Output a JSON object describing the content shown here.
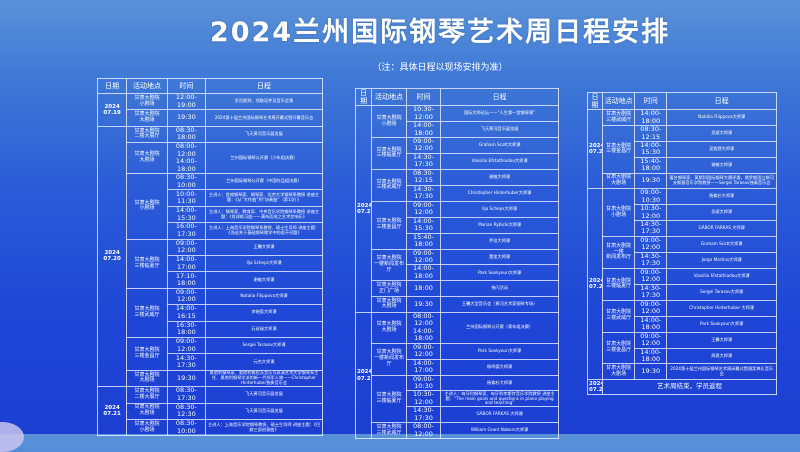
{
  "title": "2024兰州国际钢琴艺术周日程安排",
  "subtitle": "（注：具体日程以现场安排为准）",
  "headers": {
    "date": "日期",
    "venue": "活动地点",
    "time": "时间",
    "event": "日程"
  },
  "colors": {
    "background": "#2a5ad8",
    "text": "#ffffff",
    "grid": "#ebf0ff"
  },
  "tables": [
    {
      "groups": [
        {
          "date": "2024\n07.19",
          "venues": [
            {
              "name": "甘肃大剧院\n小剧场",
              "sessions": [
                {
                  "time": "12:00-19:00",
                  "event": "学员报到、领取证件及音乐会票"
                }
              ]
            },
            {
              "name": "甘肃大剧院\n大剧场",
              "sessions": [
                {
                  "time": "19:30",
                  "event": "2024第十届兰州国际钢琴艺术周开幕式暨开幕音乐会"
                }
              ]
            }
          ]
        },
        {
          "date": "2024\n07.20",
          "venues": [
            {
              "name": "甘肃大剧院\n二楼大展厅",
              "sessions": [
                {
                  "time": "08:30-18:00",
                  "event": "飞天黄河音乐展览展"
                }
              ]
            },
            {
              "name": "甘肃大剧院\n大剧场",
              "sessions": [
                {
                  "time": "08:00-12:00\n14:00-18:00",
                  "event": "兰州国际钢琴公开赛（少年组决赛）"
                }
              ]
            },
            {
              "name": "甘肃大剧院\n小剧场",
              "sessions": [
                {
                  "time": "08:30-10:00",
                  "event": "兰州国际钢琴公开赛（中国作品组决赛）"
                },
                {
                  "time": "10:00-11:30",
                  "event": "主讲人：首席钢琴家、钢琴家、北京大学钢琴系教授 讲座主题：《从“大作曲”到“协奏曲”（第1次）》"
                },
                {
                  "time": "14:00-15:30",
                  "event": "主讲人：钢琴家、教育家、中央音乐学院钢琴系教授 讲座主题：《肖邦练习曲——满布而成之艺术交响乐》"
                },
                {
                  "time": "16:00-17:30",
                  "event": "主讲人：上海音乐学院钢琴系教授、硕士生导师 讲座主题：《浅谈关于基础钢琴教学中的若干问题》"
                }
              ]
            },
            {
              "name": "甘肃大剧院\n三楼临夏厅",
              "sessions": [
                {
                  "time": "09:00-12:00",
                  "event": "王馨大师课"
                },
                {
                  "time": "14:00-17:00",
                  "event": "Ilja Scheps大师课"
                },
                {
                  "time": "17:10-18:00",
                  "event": "谢敏大师课"
                }
              ]
            },
            {
              "name": "甘肃大剧院\n三楼武威厅",
              "sessions": [
                {
                  "time": "09:00-12:00",
                  "event": "Natalia Filippova大师课"
                },
                {
                  "time": "14:00-16:15",
                  "event": "李晓笛大师课"
                },
                {
                  "time": "16:30-18:00",
                  "event": "石叔诚大师课"
                }
              ]
            },
            {
              "name": "甘肃大剧院\n三楼金昌厅",
              "sessions": [
                {
                  "time": "09:00-12:00",
                  "event": "Sergei Tarasov大师课"
                },
                {
                  "time": "14:30-17:30",
                  "event": "元杰大师课"
                }
              ]
            },
            {
              "name": "甘肃大剧院\n大剧场",
              "sessions": [
                {
                  "time": "19:30",
                  "event": "奥地利钢琴家、奥地利格拉茨音乐与表演艺术大学钢琴系主任、奥地利钢琴学派的新一代领军人物——Christopher Hinterhuber独奏音乐会"
                }
              ]
            }
          ]
        },
        {
          "date": "2024\n07.21",
          "venues": [
            {
              "name": "甘肃大剧院\n二楼大展厅",
              "sessions": [
                {
                  "time": "08:30-17:30",
                  "event": "飞天黄河音乐展览展"
                }
              ]
            },
            {
              "name": "甘肃大剧院\n大剧场",
              "sessions": [
                {
                  "time": "08:30-12:30",
                  "event": "飞天黄河音乐展览展"
                }
              ]
            },
            {
              "name": "甘肃大剧院\n小剧场",
              "sessions": [
                {
                  "time": "08:30-10:00",
                  "event": "主讲人：上海音乐学院钢琴教授、硕士生导师 讲座主题：《巴赫三部创意曲》"
                }
              ]
            }
          ]
        }
      ]
    },
    {
      "groups": [
        {
          "date": "2024\n07.21",
          "venues": [
            {
              "name": "甘肃大剧院\n小剧场",
              "sessions": [
                {
                  "time": "10:30-12:00",
                  "event": "国际大师论坛——“人生第一堂钢琴课”"
                },
                {
                  "time": "14:00-18:00",
                  "event": "飞天黄河音乐展览展"
                }
              ]
            },
            {
              "name": "甘肃大剧院\n三楼临夏厅",
              "sessions": [
                {
                  "time": "09:00-12:00",
                  "event": "Graham Scott大师课"
                },
                {
                  "time": "14:30-17:30",
                  "event": "Vassilia Efstathiadou大师课"
                }
              ]
            },
            {
              "name": "甘肃大剧院\n三楼武威厅",
              "sessions": [
                {
                  "time": "08:30-12:15",
                  "event": "谢敏大师课"
                },
                {
                  "time": "14:30-17:30",
                  "event": "Christopher Hinterhuber大师课"
                }
              ]
            },
            {
              "name": "甘肃大剧院\n三楼金昌厅",
              "sessions": [
                {
                  "time": "09:00-12:00",
                  "event": "Ilja Scheps大师课"
                },
                {
                  "time": "14:00-15:30",
                  "event": "Marian Rybicki大师课"
                },
                {
                  "time": "15:40-18:00",
                  "event": "乔佳大师课"
                }
              ]
            },
            {
              "name": "甘肃大剧院\n一楼新闻发布厅",
              "sessions": [
                {
                  "time": "09:00-12:00",
                  "event": "董笙大师课"
                },
                {
                  "time": "14:00-18:00",
                  "event": "Park Sookyoun大师课"
                }
              ]
            },
            {
              "name": "甘肃大剧院\n正门广场",
              "sessions": [
                {
                  "time": "18:00",
                  "event": "快闪活动"
                }
              ]
            },
            {
              "name": "甘肃大剧院\n大剧场",
              "sessions": [
                {
                  "time": "19:30",
                  "event": "王馨大型音乐会（黄河艺术家钢琴专场）"
                }
              ]
            }
          ]
        },
        {
          "date": "2024\n07.22",
          "venues": [
            {
              "name": "甘肃大剧院\n大剧场",
              "sessions": [
                {
                  "time": "08:00-12:00\n14:00-18:00",
                  "event": "兰州国际钢琴公开赛（青年组决赛）"
                }
              ]
            },
            {
              "name": "甘肃大剧院\n一楼新闻发布厅",
              "sessions": [
                {
                  "time": "09:00-12:00",
                  "event": "Park Sookyoun大师课"
                },
                {
                  "time": "14:00-17:00",
                  "event": "杨鸣德大师课"
                }
              ]
            },
            {
              "name": "甘肃大剧院\n三楼临夏厅",
              "sessions": [
                {
                  "time": "09:00-10:30",
                  "event": "杨紫杉大师课"
                },
                {
                  "time": "10:30-12:00",
                  "event": "主讲人：匈牙利钢琴家、匈牙利李斯特音乐学院教授 讲座主题：“The main goals and questions in piano playing and teaching”"
                },
                {
                  "time": "14:30-17:30",
                  "event": "GÁBOR FARKAS 大师课"
                }
              ]
            },
            {
              "name": "甘肃大剧院\n三楼武威厅",
              "sessions": [
                {
                  "time": "08:00-12:00",
                  "event": "William Grant Nabore大师课"
                }
              ]
            }
          ]
        }
      ]
    },
    {
      "groups": [
        {
          "date": "2024\n07.22",
          "venues": [
            {
              "name": "甘肃大剧院\n三楼武威厅",
              "sessions": [
                {
                  "time": "14:00-18:00",
                  "event": "Natalia Filippova大师课"
                }
              ]
            },
            {
              "name": "甘肃大剧院\n三楼金昌厅",
              "sessions": [
                {
                  "time": "08:30-12:15",
                  "event": "吴斌大师课"
                },
                {
                  "time": "14:00-15:30",
                  "event": "吴牧野大师课"
                },
                {
                  "time": "15:40-18:00",
                  "event": "谢敏大师课"
                }
              ]
            },
            {
              "name": "甘肃大剧院\n大剧场",
              "sessions": [
                {
                  "time": "19:30",
                  "event": "著名钢琴家、莫斯科国际钢琴大赛评委，俄罗斯国立柴可夫斯基音乐学院教授——Sergei Tarasov独奏音乐会"
                }
              ]
            }
          ]
        },
        {
          "date": "2024\n07.23",
          "venues": [
            {
              "name": "甘肃大剧院\n小剧场",
              "sessions": [
                {
                  "time": "09:00-10:30",
                  "event": "杨紫杉大师课"
                },
                {
                  "time": "10:30-12:00",
                  "event": "吴斌大师课"
                },
                {
                  "time": "14:30-17:30",
                  "event": "GÁBOR FARKAS 大师课"
                }
              ]
            },
            {
              "name": "甘肃大剧院一楼\n新闻发布厅",
              "sessions": [
                {
                  "time": "09:00-12:00",
                  "event": "Graham Scott大师课"
                },
                {
                  "time": "14:30-17:30",
                  "event": "Jorge Martins大师课"
                }
              ]
            },
            {
              "name": "甘肃大剧院\n三楼临夏厅",
              "sessions": [
                {
                  "time": "09:00-12:00",
                  "event": "Vassilia Efstathiadou大师课"
                },
                {
                  "time": "14:30-17:30",
                  "event": "Sergei Tarasov大师课"
                }
              ]
            },
            {
              "name": "甘肃大剧院\n三楼武威厅",
              "sessions": [
                {
                  "time": "09:00-12:00",
                  "event": "Christopher Hinterhuber 大师课"
                },
                {
                  "time": "14:00-18:00",
                  "event": "Park Sookyoun大师课"
                }
              ]
            },
            {
              "name": "甘肃大剧院\n三楼金昌厅",
              "sessions": [
                {
                  "time": "09:00-12:00",
                  "event": "王馨大师课"
                },
                {
                  "time": "14:00-18:00",
                  "event": "周竟大师课"
                }
              ]
            },
            {
              "name": "甘肃大剧院\n大剧场",
              "sessions": [
                {
                  "time": "19:30",
                  "event": "2024第十届兰州国际钢琴艺术周闭幕式暨颁奖典礼音乐会"
                }
              ]
            }
          ]
        },
        {
          "date": "2024\n07.24",
          "closing": "艺术周结束，学员返程",
          "venues": []
        }
      ]
    }
  ]
}
